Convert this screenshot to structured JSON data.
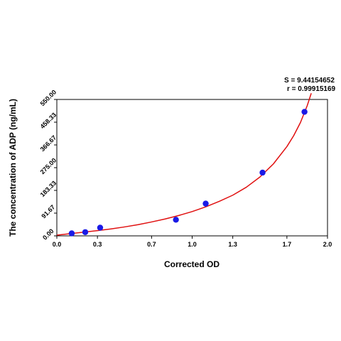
{
  "chart_data": {
    "type": "scatter",
    "xlabel": "Corrected OD",
    "ylabel": "The concentration of ADP (ng/mL)",
    "xlim": [
      0.0,
      2.0
    ],
    "ylim": [
      0.0,
      550.0
    ],
    "x_ticks": [
      "0.0",
      "0.3",
      "0.7",
      "1.0",
      "1.3",
      "1.7",
      "2.0"
    ],
    "y_ticks": [
      "0.00",
      "91.67",
      "183.33",
      "275.00",
      "366.67",
      "458.33",
      "550.00"
    ],
    "grid": false,
    "stats": {
      "s": "S = 9.44154652",
      "r": "r = 0.99915169"
    },
    "points_color": "#1a1ae6",
    "curve_color": "#e01010",
    "series": [
      {
        "type": "scatter",
        "x": [
          0.11,
          0.21,
          0.32,
          0.88,
          1.1,
          1.52,
          1.83
        ],
        "y": [
          10,
          15,
          33,
          65,
          130,
          255,
          500
        ]
      }
    ],
    "fit_curve": {
      "x": [
        0.0,
        0.1,
        0.2,
        0.3,
        0.4,
        0.5,
        0.6,
        0.7,
        0.8,
        0.9,
        1.0,
        1.1,
        1.2,
        1.3,
        1.4,
        1.5,
        1.6,
        1.7,
        1.75,
        1.8,
        1.85,
        1.88
      ],
      "y": [
        3,
        9,
        15,
        21,
        28,
        36,
        45,
        56,
        68,
        82,
        98,
        117,
        139,
        164,
        196,
        237,
        290,
        360,
        404,
        457,
        525,
        575
      ]
    }
  }
}
